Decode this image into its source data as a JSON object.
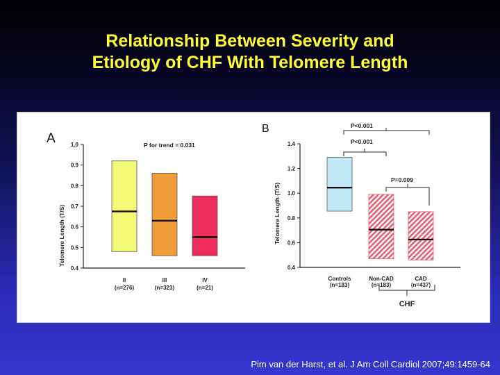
{
  "slide": {
    "title_line1": "Relationship Between Severity and",
    "title_line2": "Etiology of CHF With Telomere Length",
    "citation": "Pim van der Harst, et al. J Am Coll Cardiol 2007;49:1459-64",
    "colors": {
      "background_top": "#000000",
      "background_bottom": "#3437cf",
      "title": "#ffff33"
    }
  },
  "chart_data": [
    {
      "type": "bar",
      "panel_label": "A",
      "ylabel": "Telomere Length (T/S)",
      "ylim": [
        0.4,
        1.0
      ],
      "yticks": [
        "0.4",
        "0.5",
        "0.6",
        "0.7",
        "0.8",
        "0.9",
        "1.0"
      ],
      "annotation": "P for trend = 0.031",
      "bars": [
        {
          "label": "II",
          "n": "(n=276)",
          "low": 0.48,
          "high": 0.92,
          "median": 0.675,
          "color": "#f2fa78",
          "hatched": false
        },
        {
          "label": "III",
          "n": "(n=323)",
          "low": 0.46,
          "high": 0.86,
          "median": 0.63,
          "color": "#ee9d3a",
          "hatched": false
        },
        {
          "label": "IV",
          "n": "(n=21)",
          "low": 0.46,
          "high": 0.75,
          "median": 0.55,
          "color": "#ee2c5e",
          "hatched": false
        }
      ]
    },
    {
      "type": "bar",
      "panel_label": "B",
      "ylabel": "Telomere Length (T/S)",
      "ylim": [
        0.4,
        1.4
      ],
      "yticks": [
        "0.4",
        "0.6",
        "0.8",
        "1.0",
        "1.2",
        "1.4"
      ],
      "bars": [
        {
          "label": "Controls",
          "n": "(n=183)",
          "low": 0.855,
          "high": 1.29,
          "median": 1.045,
          "color": "#bfe8f6",
          "hatched": false
        },
        {
          "label": "Non-CAD",
          "n": "(n=183)",
          "low": 0.47,
          "high": 0.99,
          "median": 0.705,
          "color": "#e9556a",
          "hatched": true
        },
        {
          "label": "CAD",
          "n": "(n=437)",
          "low": 0.46,
          "high": 0.85,
          "median": 0.625,
          "color": "#e9556a",
          "hatched": true
        }
      ],
      "comparisons": [
        {
          "label": "P<0.001",
          "from": "Controls",
          "to": "CHF"
        },
        {
          "label": "P<0.001",
          "from": "Controls",
          "to": "Non-CAD"
        },
        {
          "label": "P=0.009",
          "from": "Non-CAD",
          "to": "CAD"
        }
      ],
      "group_label": "CHF"
    }
  ]
}
